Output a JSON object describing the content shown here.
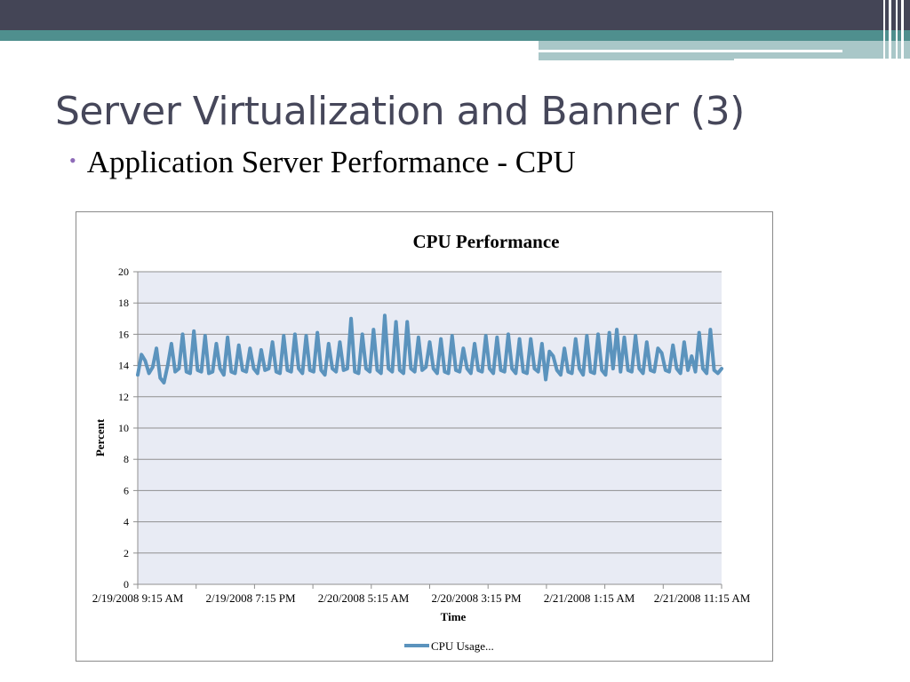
{
  "slide": {
    "title": "Server Virtualization and Banner (3)",
    "bullet": "Application Server Performance - CPU"
  },
  "colors": {
    "series": "#5b93bd",
    "plot_bg": "#e8ebf4",
    "grid": "#8f8f8f",
    "title": "#46475a"
  },
  "chart_data": {
    "type": "line",
    "title": "CPU Performance",
    "xlabel": "Time",
    "ylabel": "Percent",
    "ylim": [
      0,
      20
    ],
    "yticks": [
      0,
      2,
      4,
      6,
      8,
      10,
      12,
      14,
      16,
      18,
      20
    ],
    "x_tick_labels": [
      "2/19/2008 9:15 AM",
      "2/19/2008 7:15 PM",
      "2/20/2008 5:15 AM",
      "2/20/2008 3:15 PM",
      "2/21/2008 1:15 AM",
      "2/21/2008 11:15 AM"
    ],
    "legend": {
      "position": "bottom",
      "entries": [
        "CPU Usage..."
      ]
    },
    "grid": true,
    "series": [
      {
        "name": "CPU Usage...",
        "values": [
          13.4,
          14.7,
          14.3,
          13.5,
          13.9,
          15.1,
          13.2,
          12.9,
          14.0,
          15.4,
          13.6,
          13.8,
          16.0,
          13.6,
          13.5,
          16.2,
          13.7,
          13.6,
          15.9,
          13.5,
          13.6,
          15.4,
          13.8,
          13.4,
          15.8,
          13.6,
          13.5,
          15.3,
          13.7,
          13.6,
          15.1,
          13.8,
          13.5,
          15.0,
          13.7,
          13.8,
          15.5,
          13.6,
          13.5,
          15.9,
          13.7,
          13.6,
          16.0,
          13.8,
          13.5,
          15.9,
          13.7,
          13.6,
          16.1,
          13.7,
          13.4,
          15.4,
          13.8,
          13.6,
          15.5,
          13.7,
          13.8,
          17.0,
          13.6,
          13.5,
          16.0,
          13.8,
          13.6,
          16.3,
          13.7,
          13.5,
          17.2,
          13.8,
          13.6,
          16.8,
          13.7,
          13.5,
          16.8,
          13.8,
          13.6,
          15.8,
          13.7,
          13.9,
          15.5,
          13.8,
          13.5,
          15.7,
          13.6,
          13.5,
          15.9,
          13.7,
          13.6,
          15.1,
          13.8,
          13.5,
          15.4,
          13.7,
          13.6,
          15.9,
          13.8,
          13.5,
          15.8,
          13.7,
          13.6,
          16.0,
          13.8,
          13.5,
          15.7,
          13.6,
          13.5,
          15.7,
          13.8,
          13.6,
          15.4,
          13.1,
          14.9,
          14.6,
          13.7,
          13.4,
          15.1,
          13.6,
          13.5,
          15.7,
          13.8,
          13.4,
          15.9,
          13.6,
          13.5,
          16.0,
          13.7,
          13.4,
          16.1,
          13.8,
          16.3,
          13.6,
          15.8,
          13.7,
          13.6,
          15.9,
          13.8,
          13.5,
          15.5,
          13.7,
          13.6,
          15.1,
          14.8,
          13.7,
          13.6,
          15.3,
          13.8,
          13.5,
          15.5,
          13.7,
          14.6,
          13.6,
          16.1,
          13.8,
          13.5,
          16.3,
          13.7,
          13.5,
          13.8
        ]
      }
    ]
  }
}
